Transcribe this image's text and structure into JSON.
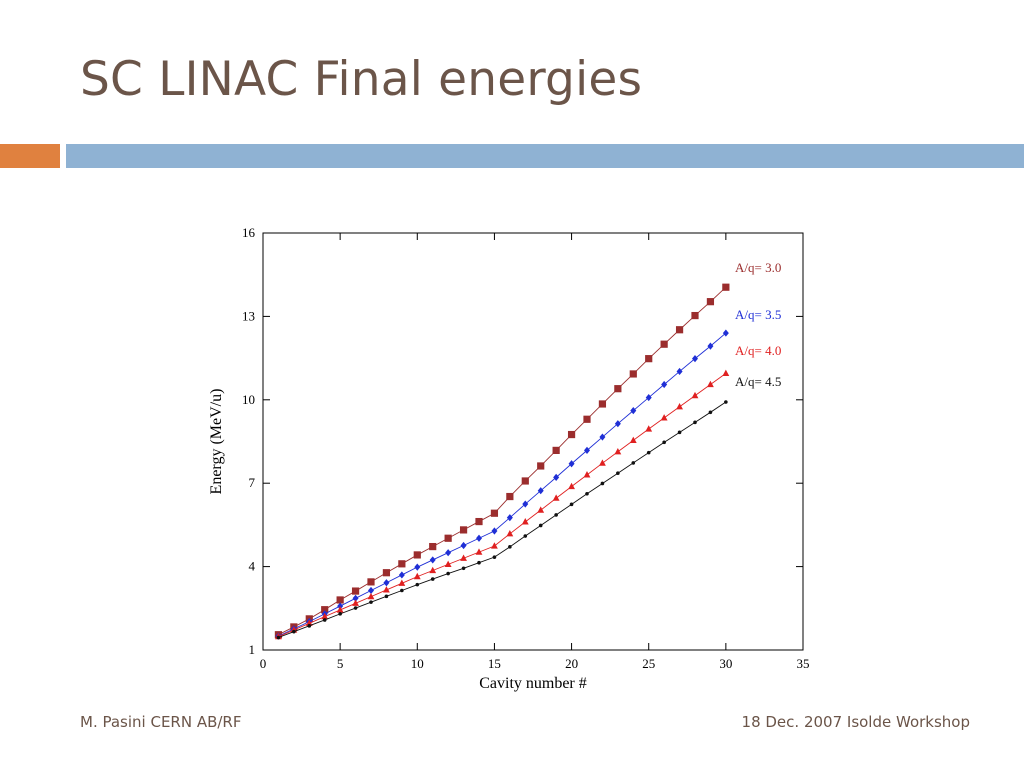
{
  "slide": {
    "title": "SC LINAC Final energies",
    "footer_left": "M. Pasini CERN AB/RF",
    "footer_right": "18 Dec. 2007 Isolde Workshop"
  },
  "colors": {
    "title": "#6b5549",
    "accent_orange": "#e0813f",
    "accent_blue": "#8fb2d3"
  },
  "chart_data": {
    "type": "line",
    "title": "",
    "xlabel": "Cavity number #",
    "ylabel": "Energy (MeV/u)",
    "xlim": [
      0,
      35
    ],
    "ylim": [
      1,
      16
    ],
    "xticks": [
      0,
      5,
      10,
      15,
      20,
      25,
      30,
      35
    ],
    "yticks": [
      1,
      4,
      7,
      10,
      13,
      16
    ],
    "grid": false,
    "legend_placement": "right, inline labels",
    "x": [
      1,
      2,
      3,
      4,
      5,
      6,
      7,
      8,
      9,
      10,
      11,
      12,
      13,
      14,
      15,
      16,
      17,
      18,
      19,
      20,
      21,
      22,
      23,
      24,
      25,
      26,
      27,
      28,
      29,
      30
    ],
    "series": [
      {
        "name": "A/q= 3.0",
        "color": "#9b2d2d",
        "marker": "square",
        "values": [
          1.55,
          1.83,
          2.12,
          2.45,
          2.8,
          3.12,
          3.45,
          3.78,
          4.1,
          4.42,
          4.72,
          5.02,
          5.32,
          5.62,
          5.92,
          6.52,
          7.08,
          7.62,
          8.18,
          8.75,
          9.3,
          9.85,
          10.4,
          10.93,
          11.48,
          12.0,
          12.52,
          13.03,
          13.53,
          14.05
        ]
      },
      {
        "name": "A/q= 3.5",
        "color": "#1f2fd6",
        "marker": "diamond",
        "values": [
          1.5,
          1.76,
          2.02,
          2.3,
          2.58,
          2.86,
          3.14,
          3.42,
          3.7,
          3.98,
          4.24,
          4.5,
          4.76,
          5.02,
          5.28,
          5.76,
          6.25,
          6.73,
          7.21,
          7.7,
          8.18,
          8.66,
          9.14,
          9.61,
          10.08,
          10.55,
          11.02,
          11.48,
          11.93,
          12.4
        ]
      },
      {
        "name": "A/q= 4.0",
        "color": "#e02020",
        "marker": "triangle",
        "values": [
          1.48,
          1.72,
          1.96,
          2.2,
          2.44,
          2.68,
          2.92,
          3.16,
          3.4,
          3.64,
          3.86,
          4.08,
          4.3,
          4.52,
          4.74,
          5.18,
          5.61,
          6.03,
          6.46,
          6.88,
          7.3,
          7.72,
          8.13,
          8.54,
          8.95,
          9.35,
          9.75,
          10.15,
          10.55,
          10.95
        ]
      },
      {
        "name": "A/q= 4.5",
        "color": "#111111",
        "marker": "dot",
        "values": [
          1.45,
          1.66,
          1.87,
          2.08,
          2.3,
          2.51,
          2.72,
          2.93,
          3.14,
          3.35,
          3.55,
          3.75,
          3.94,
          4.14,
          4.34,
          4.71,
          5.1,
          5.48,
          5.86,
          6.24,
          6.62,
          6.99,
          7.36,
          7.73,
          8.1,
          8.47,
          8.83,
          9.19,
          9.55,
          9.92
        ]
      }
    ]
  }
}
